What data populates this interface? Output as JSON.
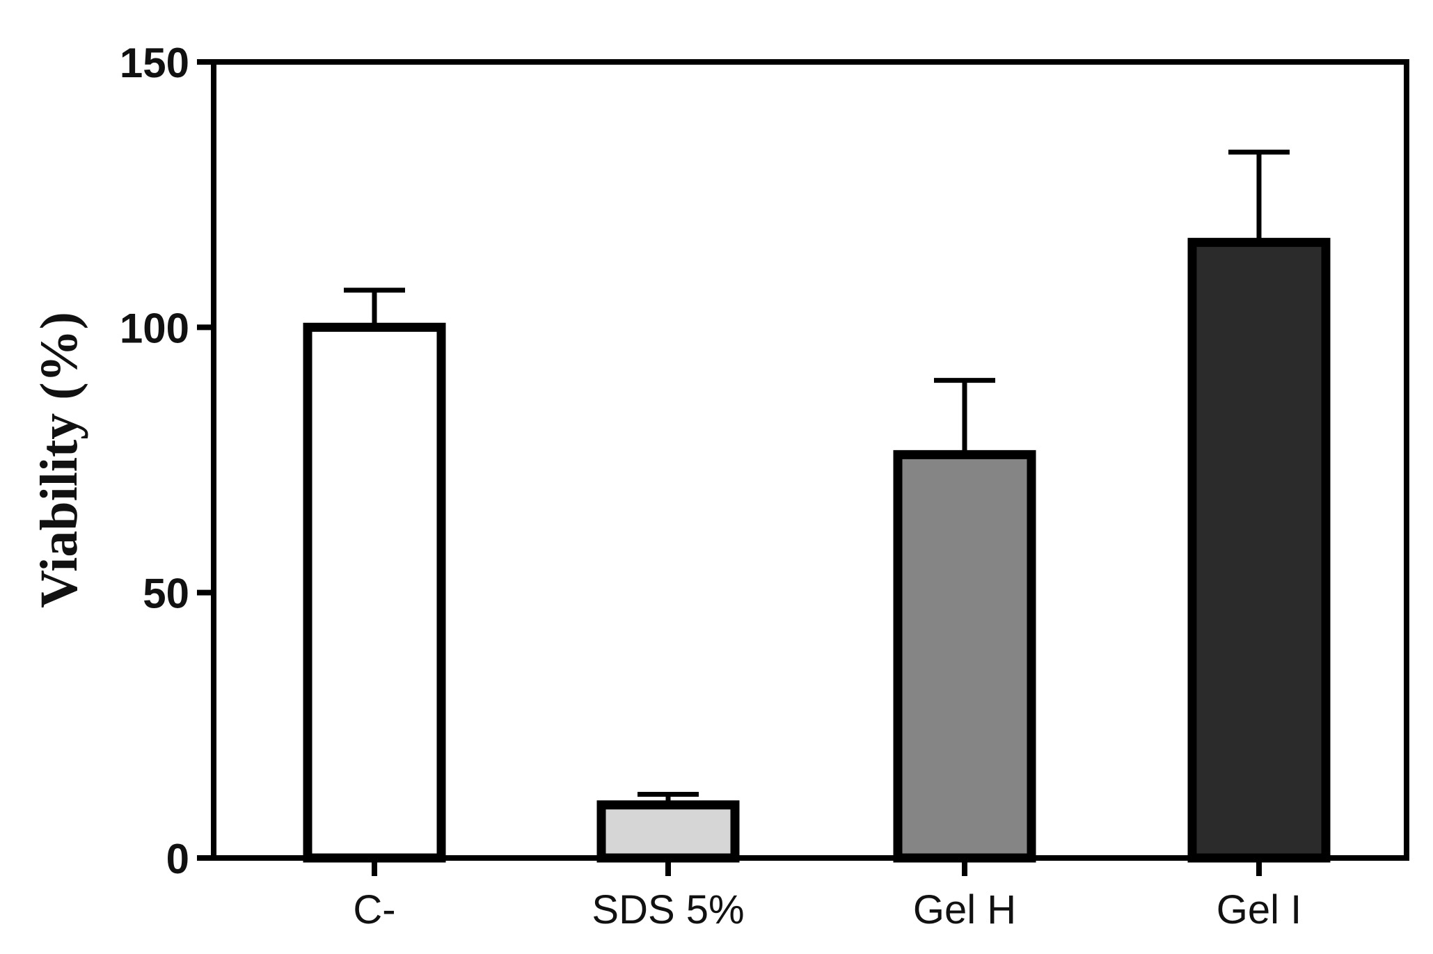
{
  "chart_data": {
    "type": "bar",
    "title": "",
    "xlabel": "",
    "ylabel": "Viability (%)",
    "ylim": [
      0,
      150
    ],
    "yticks": [
      "0",
      "50",
      "100",
      "150"
    ],
    "grid": false,
    "categories": [
      "C-",
      "SDS 5%",
      "Gel H",
      "Gel I"
    ],
    "values": [
      100,
      10,
      76,
      116
    ],
    "errors": [
      7,
      2,
      14,
      17
    ],
    "colors": [
      "#ffffff",
      "#d6d6d6",
      "#858585",
      "#2b2b2b"
    ],
    "edge_color": "#000000"
  }
}
